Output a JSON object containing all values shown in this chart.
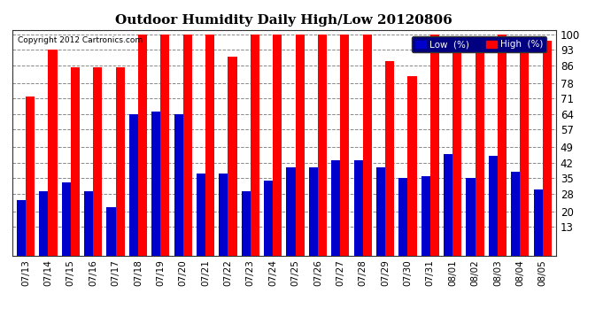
{
  "title": "Outdoor Humidity Daily High/Low 20120806",
  "copyright": "Copyright 2012 Cartronics.com",
  "dates": [
    "07/13",
    "07/14",
    "07/15",
    "07/16",
    "07/17",
    "07/18",
    "07/19",
    "07/20",
    "07/21",
    "07/22",
    "07/23",
    "07/24",
    "07/25",
    "07/26",
    "07/27",
    "07/28",
    "07/29",
    "07/30",
    "07/31",
    "08/01",
    "08/02",
    "08/03",
    "08/04",
    "08/05"
  ],
  "high": [
    72,
    93,
    85,
    85,
    85,
    100,
    100,
    100,
    100,
    90,
    100,
    100,
    100,
    100,
    100,
    100,
    88,
    81,
    100,
    97,
    97,
    100,
    95,
    97
  ],
  "low": [
    25,
    29,
    33,
    29,
    22,
    64,
    65,
    64,
    37,
    37,
    29,
    34,
    40,
    40,
    43,
    43,
    40,
    35,
    36,
    46,
    35,
    45,
    38,
    30
  ],
  "high_color": "#ff0000",
  "low_color": "#0000cc",
  "bg_color": "#ffffff",
  "grid_color": "#888888",
  "yticks": [
    13,
    20,
    28,
    35,
    42,
    49,
    57,
    64,
    71,
    78,
    86,
    93,
    100
  ],
  "ymin": 13,
  "ymax": 102,
  "bar_width": 0.4,
  "legend_low_label": "Low  (%)",
  "legend_high_label": "High  (%)"
}
